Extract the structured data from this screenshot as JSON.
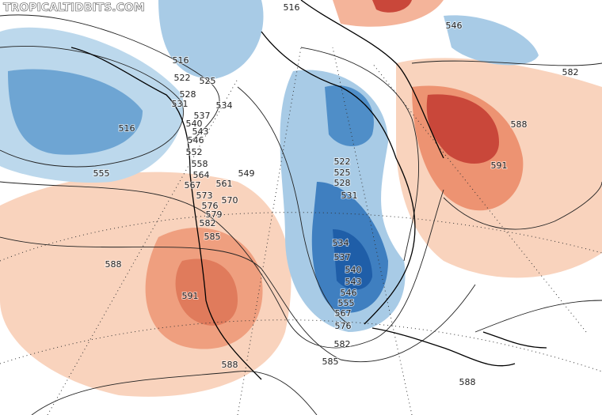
{
  "watermark": "TROPICALTIDBITS.COM",
  "contour_labels": [
    "516",
    "546",
    "582",
    "516",
    "522",
    "525",
    "528",
    "531",
    "534",
    "537",
    "540",
    "543",
    "546",
    "552",
    "558",
    "564",
    "567",
    "573",
    "576",
    "579",
    "582",
    "585",
    "561",
    "570",
    "549",
    "516",
    "555",
    "588",
    "591",
    "588",
    "588",
    "591",
    "522",
    "525",
    "528",
    "531",
    "534",
    "537",
    "540",
    "543",
    "546",
    "555",
    "567",
    "576",
    "582",
    "585",
    "588"
  ]
}
